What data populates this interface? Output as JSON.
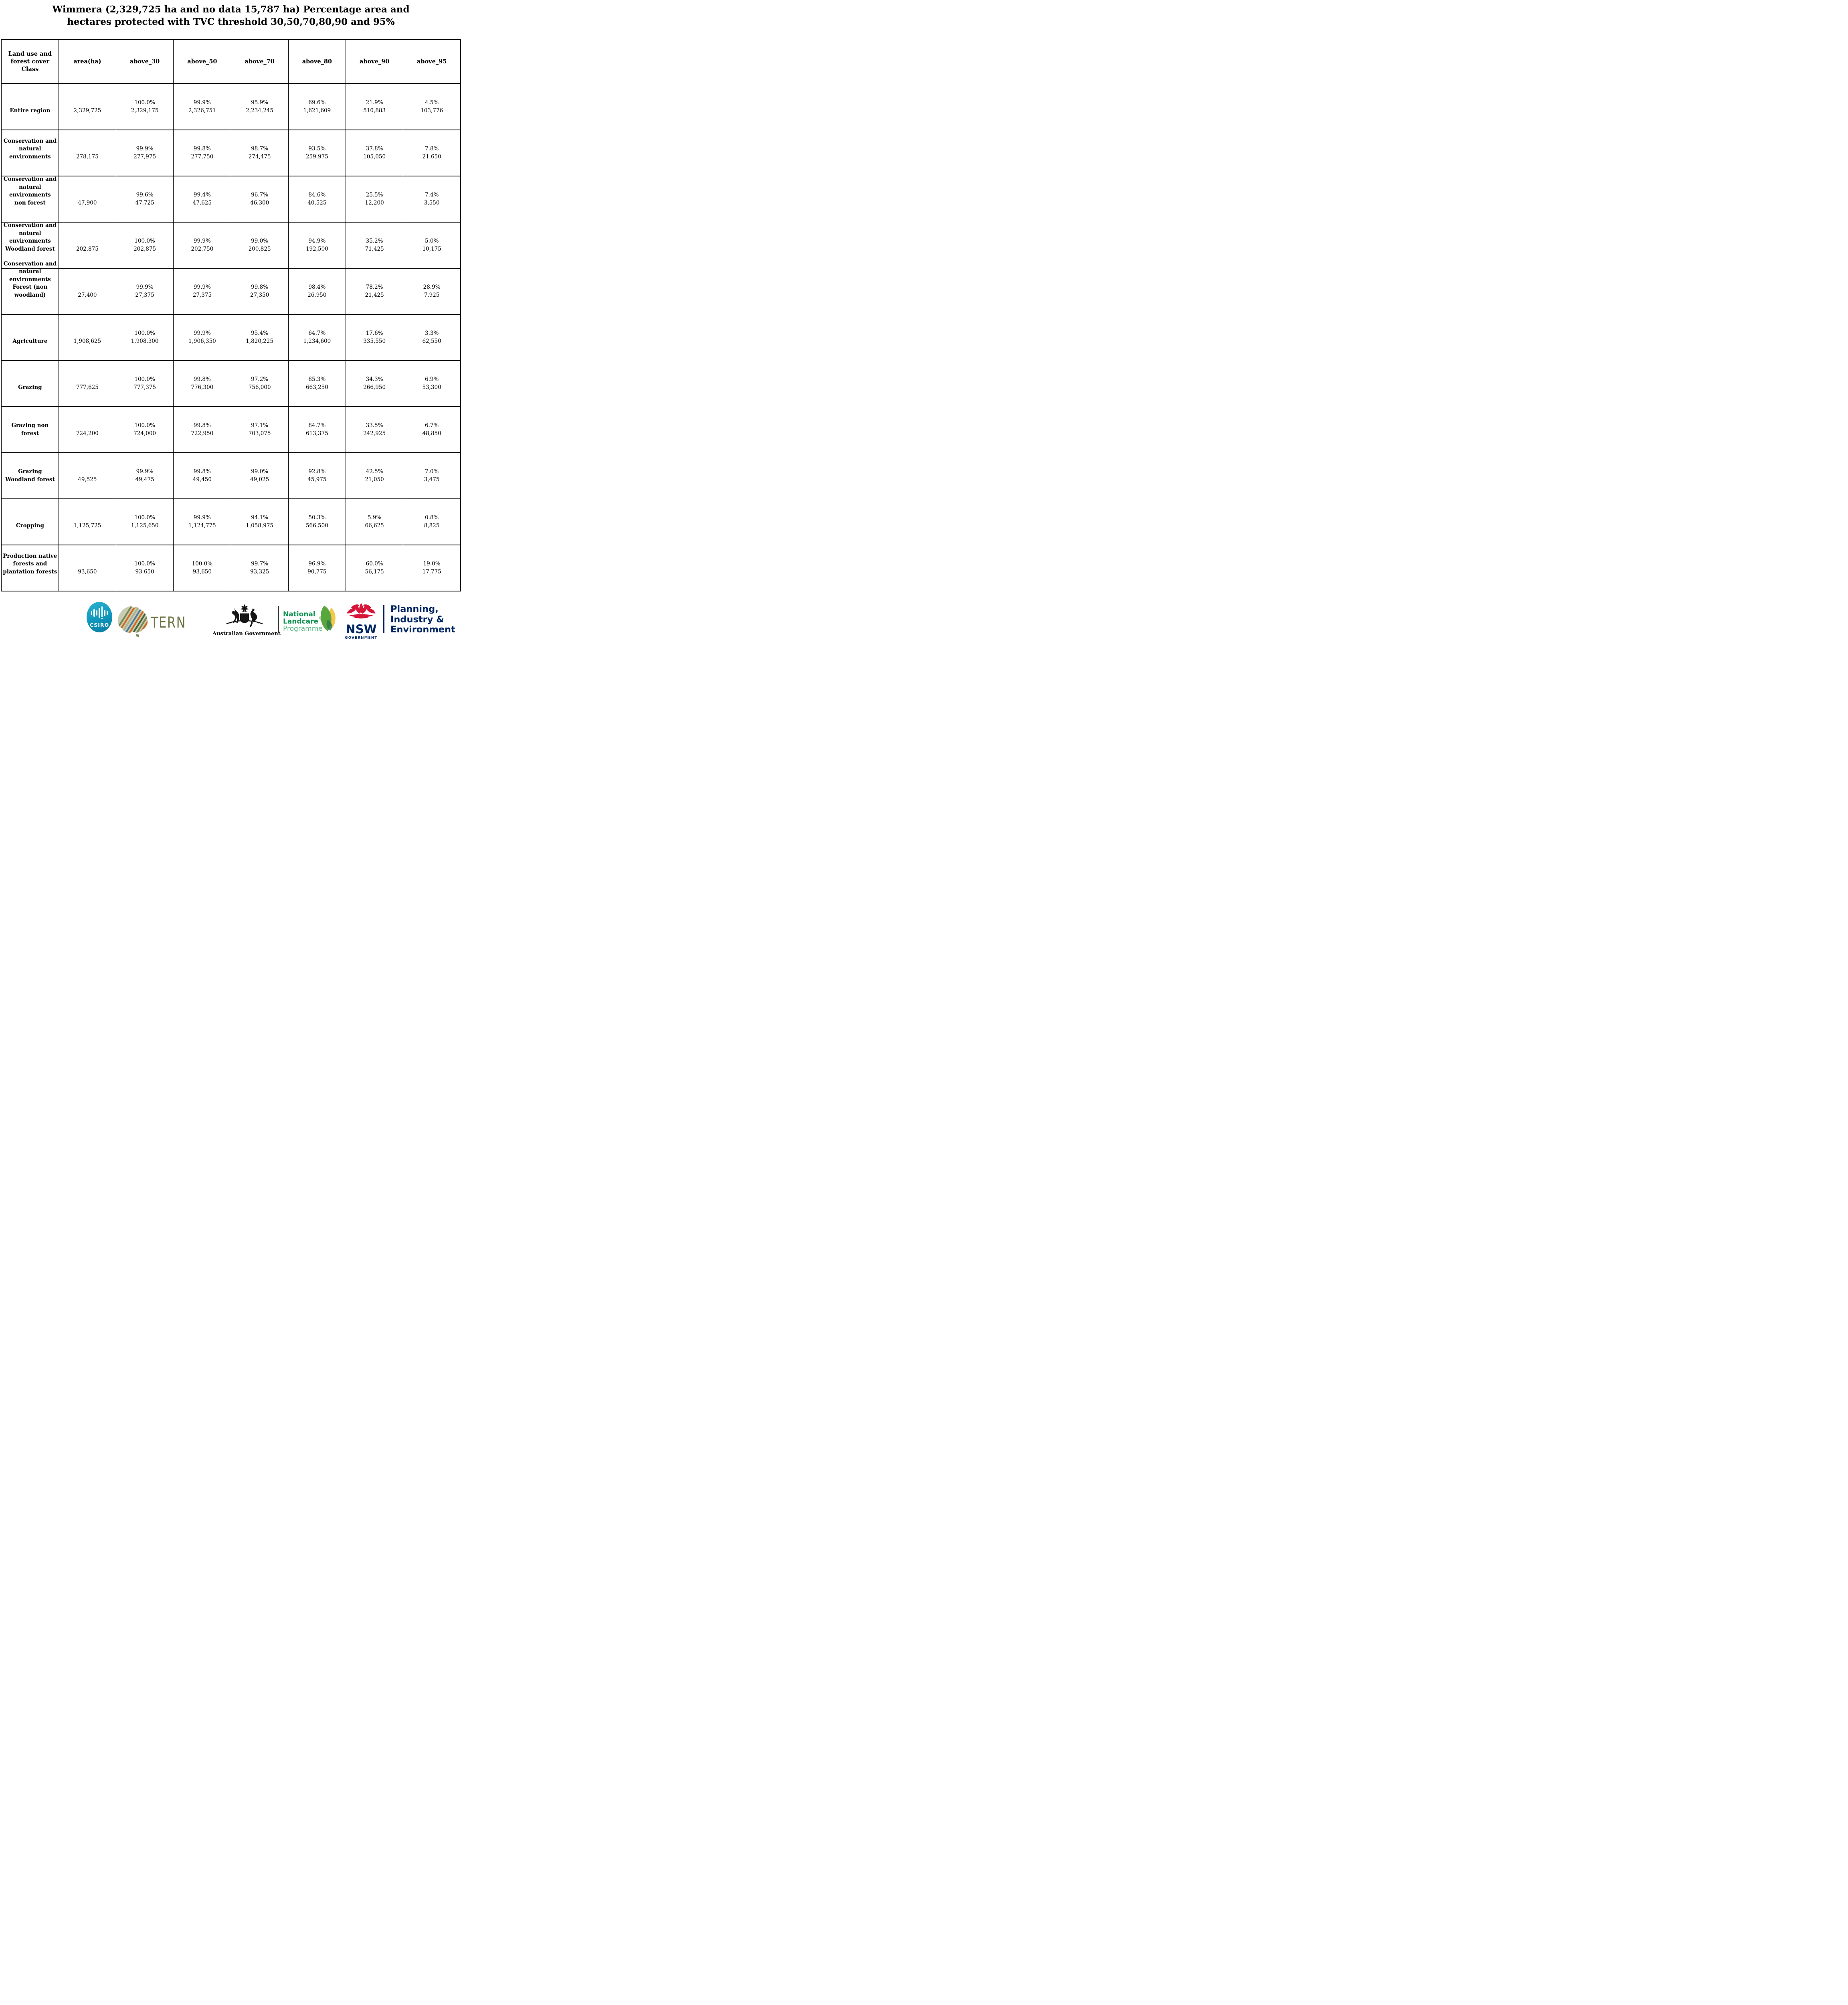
{
  "title": {
    "line1": "Wimmera (2,329,725 ha and no data 15,787 ha) Percentage area and",
    "line2": "hectares protected with TVC threshold 30,50,70,80,90 and 95%"
  },
  "table": {
    "columns": [
      "Land use and forest cover Class",
      "area(ha)",
      "above_30",
      "above_50",
      "above_70",
      "above_80",
      "above_90",
      "above_95"
    ],
    "column_keys": [
      "class",
      "area-ha",
      "above-30",
      "above-50",
      "above-70",
      "above-80",
      "above-90",
      "above-95"
    ],
    "rows": [
      {
        "label": "Entire region",
        "area": "2,329,725",
        "above": [
          {
            "pct": "100.0%",
            "ha": "2,329,175"
          },
          {
            "pct": "99.9%",
            "ha": "2,326,751"
          },
          {
            "pct": "95.9%",
            "ha": "2,234,245"
          },
          {
            "pct": "69.6%",
            "ha": "1,621,609"
          },
          {
            "pct": "21.9%",
            "ha": "510,883"
          },
          {
            "pct": "4.5%",
            "ha": "103,776"
          }
        ]
      },
      {
        "label": "Conservation and natural environments",
        "area": "278,175",
        "above": [
          {
            "pct": "99.9%",
            "ha": "277,975"
          },
          {
            "pct": "99.8%",
            "ha": "277,750"
          },
          {
            "pct": "98.7%",
            "ha": "274,475"
          },
          {
            "pct": "93.5%",
            "ha": "259,975"
          },
          {
            "pct": "37.8%",
            "ha": "105,050"
          },
          {
            "pct": "7.8%",
            "ha": "21,650"
          }
        ]
      },
      {
        "label": "Conservation and natural environments non forest",
        "area": "47,900",
        "above": [
          {
            "pct": "99.6%",
            "ha": "47,725"
          },
          {
            "pct": "99.4%",
            "ha": "47,625"
          },
          {
            "pct": "96.7%",
            "ha": "46,300"
          },
          {
            "pct": "84.6%",
            "ha": "40,525"
          },
          {
            "pct": "25.5%",
            "ha": "12,200"
          },
          {
            "pct": "7.4%",
            "ha": "3,550"
          }
        ]
      },
      {
        "label": "Conservation and natural environments Woodland forest",
        "area": "202,875",
        "above": [
          {
            "pct": "100.0%",
            "ha": "202,875"
          },
          {
            "pct": "99.9%",
            "ha": "202,750"
          },
          {
            "pct": "99.0%",
            "ha": "200,825"
          },
          {
            "pct": "94.9%",
            "ha": "192,500"
          },
          {
            "pct": "35.2%",
            "ha": "71,425"
          },
          {
            "pct": "5.0%",
            "ha": "10,175"
          }
        ]
      },
      {
        "label": "Conservation and natural environments Forest (non woodland)",
        "area": "27,400",
        "above": [
          {
            "pct": "99.9%",
            "ha": "27,375"
          },
          {
            "pct": "99.9%",
            "ha": "27,375"
          },
          {
            "pct": "99.8%",
            "ha": "27,350"
          },
          {
            "pct": "98.4%",
            "ha": "26,950"
          },
          {
            "pct": "78.2%",
            "ha": "21,425"
          },
          {
            "pct": "28.9%",
            "ha": "7,925"
          }
        ]
      },
      {
        "label": "Agriculture",
        "area": "1,908,625",
        "above": [
          {
            "pct": "100.0%",
            "ha": "1,908,300"
          },
          {
            "pct": "99.9%",
            "ha": "1,906,350"
          },
          {
            "pct": "95.4%",
            "ha": "1,820,225"
          },
          {
            "pct": "64.7%",
            "ha": "1,234,600"
          },
          {
            "pct": "17.6%",
            "ha": "335,550"
          },
          {
            "pct": "3.3%",
            "ha": "62,550"
          }
        ]
      },
      {
        "label": "Grazing",
        "area": "777,625",
        "above": [
          {
            "pct": "100.0%",
            "ha": "777,375"
          },
          {
            "pct": "99.8%",
            "ha": "776,300"
          },
          {
            "pct": "97.2%",
            "ha": "756,000"
          },
          {
            "pct": "85.3%",
            "ha": "663,250"
          },
          {
            "pct": "34.3%",
            "ha": "266,950"
          },
          {
            "pct": "6.9%",
            "ha": "53,300"
          }
        ]
      },
      {
        "label": "Grazing non forest",
        "area": "724,200",
        "above": [
          {
            "pct": "100.0%",
            "ha": "724,000"
          },
          {
            "pct": "99.8%",
            "ha": "722,950"
          },
          {
            "pct": "97.1%",
            "ha": "703,075"
          },
          {
            "pct": "84.7%",
            "ha": "613,375"
          },
          {
            "pct": "33.5%",
            "ha": "242,925"
          },
          {
            "pct": "6.7%",
            "ha": "48,850"
          }
        ]
      },
      {
        "label": "Grazing Woodland forest",
        "area": "49,525",
        "above": [
          {
            "pct": "99.9%",
            "ha": "49,475"
          },
          {
            "pct": "99.8%",
            "ha": "49,450"
          },
          {
            "pct": "99.0%",
            "ha": "49,025"
          },
          {
            "pct": "92.8%",
            "ha": "45,975"
          },
          {
            "pct": "42.5%",
            "ha": "21,050"
          },
          {
            "pct": "7.0%",
            "ha": "3,475"
          }
        ]
      },
      {
        "label": "Cropping",
        "area": "1,125,725",
        "above": [
          {
            "pct": "100.0%",
            "ha": "1,125,650"
          },
          {
            "pct": "99.9%",
            "ha": "1,124,775"
          },
          {
            "pct": "94.1%",
            "ha": "1,058,975"
          },
          {
            "pct": "50.3%",
            "ha": "566,500"
          },
          {
            "pct": "5.9%",
            "ha": "66,625"
          },
          {
            "pct": "0.8%",
            "ha": "8,825"
          }
        ]
      },
      {
        "label": "Production native forests and plantation forests",
        "area": "93,650",
        "above": [
          {
            "pct": "100.0%",
            "ha": "93,650"
          },
          {
            "pct": "100.0%",
            "ha": "93,650"
          },
          {
            "pct": "99.7%",
            "ha": "93,325"
          },
          {
            "pct": "96.9%",
            "ha": "90,775"
          },
          {
            "pct": "60.0%",
            "ha": "56,175"
          },
          {
            "pct": "19.0%",
            "ha": "17,775"
          }
        ]
      }
    ]
  },
  "footer": {
    "csiro": {
      "label": "CSIRO",
      "teal": "#1095bb"
    },
    "tern": {
      "label": "TERN",
      "olive": "#6d7342"
    },
    "aus_gov": {
      "label": "Australian Government"
    },
    "landcare": {
      "line1": "National",
      "line2": "Landcare",
      "line3": "Programme",
      "green": "#0f9150",
      "light_green": "#5cb985"
    },
    "nsw": {
      "name": "NSW",
      "sub": "GOVERNMENT",
      "navy": "#002664",
      "red": "#d7153a"
    },
    "pie": {
      "line1": "Planning,",
      "line2": "Industry &",
      "line3": "Environment"
    }
  }
}
